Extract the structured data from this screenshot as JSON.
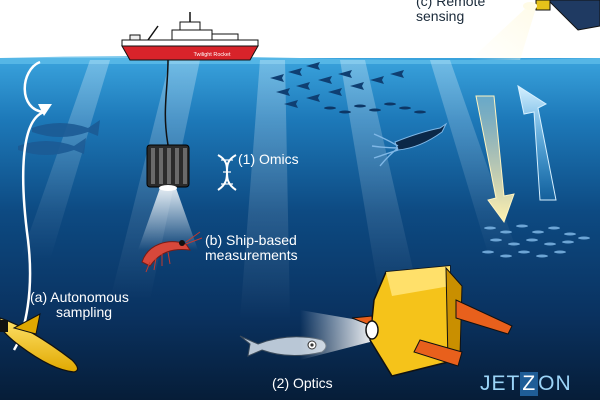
{
  "labels": {
    "remote_sensing": [
      "(c) Remote",
      "sensing"
    ],
    "omics": "(1) Omics",
    "ship_based": [
      "(b) Ship-based",
      "measurements"
    ],
    "autonomous": [
      "(a) Autonomous",
      "sampling"
    ],
    "optics": "(2) Optics"
  },
  "ship_name": "Twilight Rocket",
  "logo": {
    "left": "JET",
    "mid": "Z",
    "right": "ON"
  },
  "colors": {
    "sky": "#ffffff",
    "ocean_surface": "#2a8fcf",
    "ocean_mid": "#0e4f88",
    "ocean_deep": "#07223f",
    "ship_hull": "#d8232a",
    "glider": "#f2c21b",
    "label_text": "#ffffff",
    "logo": "#9bd4f7"
  },
  "icons": [
    "ship-icon",
    "satellite-icon",
    "dna-icon",
    "krill-icon",
    "squid-icon",
    "fish-icon",
    "glider-icon",
    "camera-icon",
    "instrument-icon"
  ]
}
